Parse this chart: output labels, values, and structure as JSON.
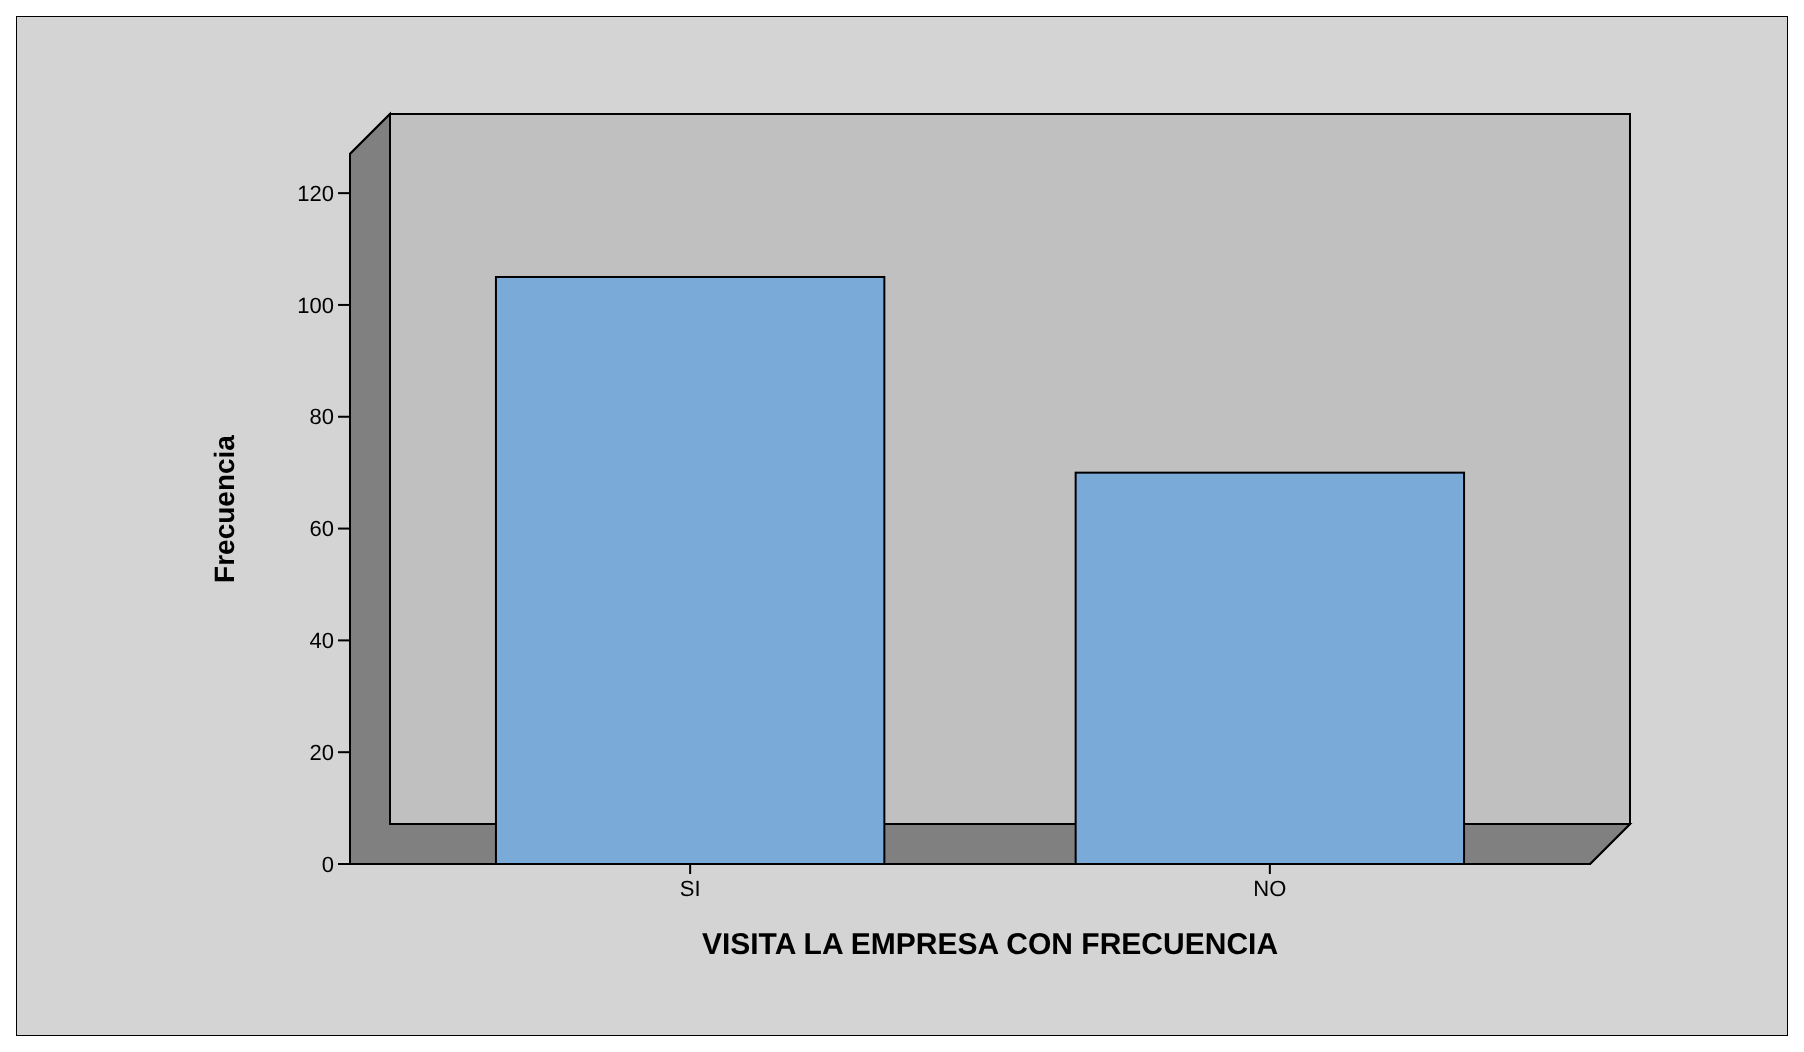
{
  "chart_data": {
    "type": "bar",
    "xlabel": "VISITA LA EMPRESA CON FRECUENCIA",
    "ylabel": "Frecuencia",
    "categories": [
      "SI",
      "NO"
    ],
    "values": [
      105,
      70
    ],
    "color": "#7aaad8",
    "ylim": [
      0,
      127
    ],
    "yticks": [
      0,
      20,
      40,
      60,
      80,
      100,
      120
    ]
  }
}
